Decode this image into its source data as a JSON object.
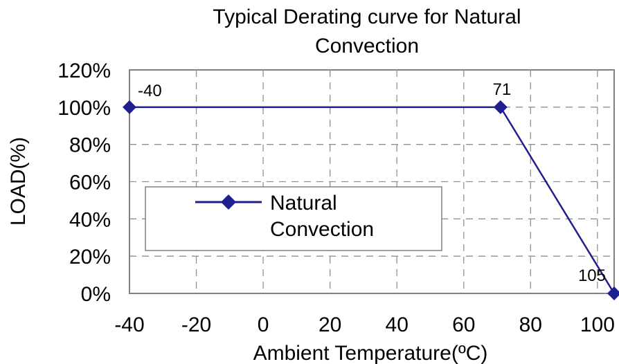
{
  "chart_data": {
    "type": "line",
    "title_line1": "Typical Derating curve for Natural",
    "title_line2": "Convection",
    "xlabel": "Ambient Temperature(ºC)",
    "ylabel": "LOAD(%)",
    "xlim": [
      -40,
      105
    ],
    "ylim": [
      0,
      120
    ],
    "x_ticks": [
      {
        "value": -40,
        "label": "-40"
      },
      {
        "value": -20,
        "label": "-20"
      },
      {
        "value": 0,
        "label": "0"
      },
      {
        "value": 20,
        "label": "20"
      },
      {
        "value": 40,
        "label": "40"
      },
      {
        "value": 60,
        "label": "60"
      },
      {
        "value": 80,
        "label": "80"
      },
      {
        "value": 100,
        "label": "100"
      }
    ],
    "y_ticks": [
      {
        "value": 0,
        "label": "0%"
      },
      {
        "value": 20,
        "label": "20%"
      },
      {
        "value": 40,
        "label": "40%"
      },
      {
        "value": 60,
        "label": "60%"
      },
      {
        "value": 80,
        "label": "80%"
      },
      {
        "value": 100,
        "label": "100%"
      },
      {
        "value": 120,
        "label": "120%"
      }
    ],
    "grid": true,
    "legend_position": "center-left",
    "series": [
      {
        "name_line1": "Natural",
        "name_line2": "Convection",
        "color": "#1f1f8f",
        "marker": "diamond",
        "points": [
          {
            "x": -40,
            "y": 100,
            "label": "-40"
          },
          {
            "x": 71,
            "y": 100,
            "label": "71"
          },
          {
            "x": 105,
            "y": 0,
            "label": "105"
          }
        ]
      }
    ]
  }
}
